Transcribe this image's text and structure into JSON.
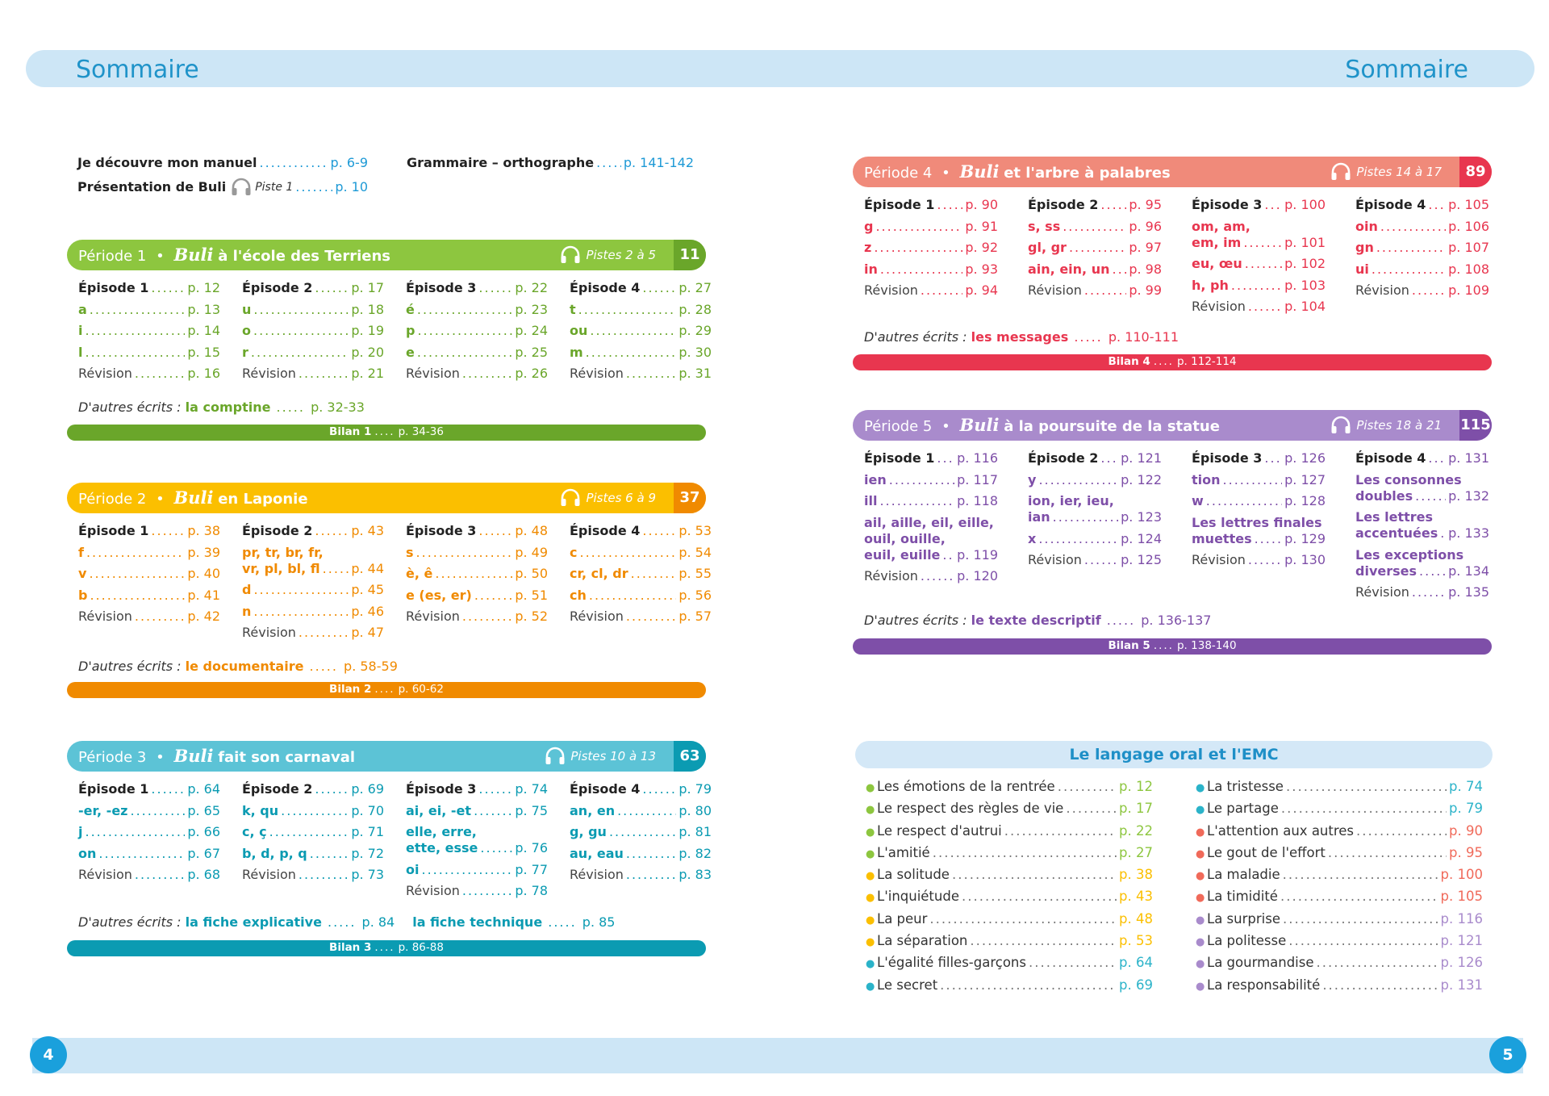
{
  "header": {
    "title_left": "Sommaire",
    "title_right": "Sommaire"
  },
  "footer": {
    "page_left": "4",
    "page_right": "5"
  },
  "intro": {
    "decouvre": {
      "label": "Je découvre mon manuel",
      "page": "p. 6-9"
    },
    "presentation": {
      "label": "Présentation de Buli",
      "track": "Piste 1",
      "page": "p. 10"
    },
    "grammaire": {
      "label": "Grammaire – orthographe",
      "page": "p. 141-142"
    }
  },
  "periods": [
    {
      "period": "Période 1",
      "bullet": "•",
      "buli": "Buli",
      "title": "à l'école des Terriens",
      "tracks": "Pistes 2 à 5",
      "page_start": "11",
      "color": "#8dc63f",
      "dark": "#6aa62a",
      "columns": [
        [
          {
            "t": "ep",
            "label": "Épisode 1",
            "page": "p. 12"
          },
          {
            "t": "let",
            "label": "a",
            "page": "p. 13"
          },
          {
            "t": "let",
            "label": "i",
            "page": "p. 14"
          },
          {
            "t": "let",
            "label": "l",
            "page": "p. 15"
          },
          {
            "t": "rev",
            "label": "Révision",
            "page": "p. 16"
          }
        ],
        [
          {
            "t": "ep",
            "label": "Épisode 2",
            "page": "p. 17"
          },
          {
            "t": "let",
            "label": "u",
            "page": "p. 18"
          },
          {
            "t": "let",
            "label": "o",
            "page": "p. 19"
          },
          {
            "t": "let",
            "label": "r",
            "page": "p. 20"
          },
          {
            "t": "rev",
            "label": "Révision",
            "page": "p. 21"
          }
        ],
        [
          {
            "t": "ep",
            "label": "Épisode 3",
            "page": "p. 22"
          },
          {
            "t": "let",
            "label": "é",
            "page": "p. 23"
          },
          {
            "t": "let",
            "label": "p",
            "page": "p. 24"
          },
          {
            "t": "let",
            "label": "e",
            "page": "p. 25"
          },
          {
            "t": "rev",
            "label": "Révision",
            "page": "p. 26"
          }
        ],
        [
          {
            "t": "ep",
            "label": "Épisode 4",
            "page": "p. 27"
          },
          {
            "t": "let",
            "label": "t",
            "page": "p. 28"
          },
          {
            "t": "let",
            "label": "ou",
            "page": "p. 29"
          },
          {
            "t": "let",
            "label": "m",
            "page": "p. 30"
          },
          {
            "t": "rev",
            "label": "Révision",
            "page": "p. 31"
          }
        ]
      ],
      "autres": {
        "prefix": "D'autres écrits :",
        "items": [
          {
            "label": "la comptine",
            "page": "p. 32-33"
          }
        ]
      },
      "bilan": {
        "label": "Bilan 1",
        "page": "p. 34-36"
      }
    },
    {
      "period": "Période 2",
      "bullet": "•",
      "buli": "Buli",
      "title": "en Laponie",
      "tracks": "Pistes 6 à 9",
      "page_start": "37",
      "color": "#fbbf00",
      "dark": "#f08a00",
      "columns": [
        [
          {
            "t": "ep",
            "label": "Épisode 1",
            "page": "p. 38"
          },
          {
            "t": "let",
            "label": "f",
            "page": "p. 39"
          },
          {
            "t": "let",
            "label": "v",
            "page": "p. 40"
          },
          {
            "t": "let",
            "label": "b",
            "page": "p. 41"
          },
          {
            "t": "rev",
            "label": "Révision",
            "page": "p. 42"
          }
        ],
        [
          {
            "t": "ep",
            "label": "Épisode 2",
            "page": "p. 43"
          },
          {
            "t": "let",
            "label": "pr, tr, br, fr,",
            "page": ""
          },
          {
            "t": "let",
            "label": "vr, pl, bl, fl",
            "page": "p. 44"
          },
          {
            "t": "let",
            "label": "d",
            "page": "p. 45"
          },
          {
            "t": "let",
            "label": "n",
            "page": "p. 46"
          },
          {
            "t": "rev",
            "label": "Révision",
            "page": "p. 47"
          }
        ],
        [
          {
            "t": "ep",
            "label": "Épisode 3",
            "page": "p. 48"
          },
          {
            "t": "let",
            "label": "s",
            "page": "p. 49"
          },
          {
            "t": "let",
            "label": "è, ê",
            "page": "p. 50"
          },
          {
            "t": "let",
            "label": "e (es, er)",
            "page": "p. 51"
          },
          {
            "t": "rev",
            "label": "Révision",
            "page": "p. 52"
          }
        ],
        [
          {
            "t": "ep",
            "label": "Épisode 4",
            "page": "p. 53"
          },
          {
            "t": "let",
            "label": "c",
            "page": "p. 54"
          },
          {
            "t": "let",
            "label": "cr, cl, dr",
            "page": "p. 55"
          },
          {
            "t": "let",
            "label": "ch",
            "page": "p. 56"
          },
          {
            "t": "rev",
            "label": "Révision",
            "page": "p. 57"
          }
        ]
      ],
      "autres": {
        "prefix": "D'autres écrits :",
        "items": [
          {
            "label": "le documentaire",
            "page": "p. 58-59"
          }
        ]
      },
      "bilan": {
        "label": "Bilan 2",
        "page": "p. 60-62"
      }
    },
    {
      "period": "Période 3",
      "bullet": "•",
      "buli": "Buli",
      "title": "fait son carnaval",
      "tracks": "Pistes 10 à 13",
      "page_start": "63",
      "color": "#5cc3d6",
      "dark": "#0b9bb2",
      "columns": [
        [
          {
            "t": "ep",
            "label": "Épisode 1",
            "page": "p. 64"
          },
          {
            "t": "let",
            "label": "-er, -ez",
            "page": "p. 65"
          },
          {
            "t": "let",
            "label": "j",
            "page": "p. 66"
          },
          {
            "t": "let",
            "label": "on",
            "page": "p. 67"
          },
          {
            "t": "rev",
            "label": "Révision",
            "page": "p. 68"
          }
        ],
        [
          {
            "t": "ep",
            "label": "Épisode 2",
            "page": "p. 69"
          },
          {
            "t": "let",
            "label": "k, qu",
            "page": "p. 70"
          },
          {
            "t": "let",
            "label": "c, ç",
            "page": "p. 71"
          },
          {
            "t": "let",
            "label": "b, d, p, q",
            "page": "p. 72"
          },
          {
            "t": "rev",
            "label": "Révision",
            "page": "p. 73"
          }
        ],
        [
          {
            "t": "ep",
            "label": "Épisode 3",
            "page": "p. 74"
          },
          {
            "t": "let",
            "label": "ai, ei, -et",
            "page": "p. 75"
          },
          {
            "t": "let",
            "label": "elle, erre,",
            "page": ""
          },
          {
            "t": "let",
            "label": "ette, esse",
            "page": "p. 76"
          },
          {
            "t": "let",
            "label": "oi",
            "page": "p. 77"
          },
          {
            "t": "rev",
            "label": "Révision",
            "page": "p. 78"
          }
        ],
        [
          {
            "t": "ep",
            "label": "Épisode 4",
            "page": "p. 79"
          },
          {
            "t": "let",
            "label": "an, en",
            "page": "p. 80"
          },
          {
            "t": "let",
            "label": "g, gu",
            "page": "p. 81"
          },
          {
            "t": "let",
            "label": "au, eau",
            "page": "p. 82"
          },
          {
            "t": "rev",
            "label": "Révision",
            "page": "p. 83"
          }
        ]
      ],
      "autres": {
        "prefix": "D'autres écrits :",
        "items": [
          {
            "label": "la fiche explicative",
            "page": "p. 84"
          },
          {
            "label": "la fiche technique",
            "page": "p. 85"
          }
        ]
      },
      "bilan": {
        "label": "Bilan 3",
        "page": "p. 86-88"
      }
    },
    {
      "period": "Période 4",
      "bullet": "•",
      "buli": "Buli",
      "title": "et l'arbre à palabres",
      "tracks": "Pistes 14 à 17",
      "page_start": "89",
      "color": "#f08a7a",
      "dark": "#e8364f",
      "columns": [
        [
          {
            "t": "ep",
            "label": "Épisode 1",
            "page": "p. 90"
          },
          {
            "t": "let",
            "label": "g",
            "page": "p. 91"
          },
          {
            "t": "let",
            "label": "z",
            "page": "p. 92"
          },
          {
            "t": "let",
            "label": "in",
            "page": "p. 93"
          },
          {
            "t": "rev",
            "label": "Révision",
            "page": "p. 94"
          }
        ],
        [
          {
            "t": "ep",
            "label": "Épisode 2",
            "page": "p. 95"
          },
          {
            "t": "let",
            "label": "s, ss",
            "page": "p. 96"
          },
          {
            "t": "let",
            "label": "gl, gr",
            "page": "p. 97"
          },
          {
            "t": "let",
            "label": "ain, ein, un",
            "page": "p. 98"
          },
          {
            "t": "rev",
            "label": "Révision",
            "page": "p. 99"
          }
        ],
        [
          {
            "t": "ep",
            "label": "Épisode 3",
            "page": "p. 100"
          },
          {
            "t": "let",
            "label": "om, am,",
            "page": ""
          },
          {
            "t": "let",
            "label": "em, im",
            "page": "p. 101"
          },
          {
            "t": "let",
            "label": "eu, œu",
            "page": "p. 102"
          },
          {
            "t": "let",
            "label": "h, ph",
            "page": "p. 103"
          },
          {
            "t": "rev",
            "label": "Révision",
            "page": "p. 104"
          }
        ],
        [
          {
            "t": "ep",
            "label": "Épisode 4",
            "page": "p. 105"
          },
          {
            "t": "let",
            "label": "oin",
            "page": "p. 106"
          },
          {
            "t": "let",
            "label": "gn",
            "page": "p. 107"
          },
          {
            "t": "let",
            "label": "ui",
            "page": "p. 108"
          },
          {
            "t": "rev",
            "label": "Révision",
            "page": "p. 109"
          }
        ]
      ],
      "autres": {
        "prefix": "D'autres écrits :",
        "items": [
          {
            "label": "les messages",
            "page": "p. 110-111"
          }
        ]
      },
      "bilan": {
        "label": "Bilan 4",
        "page": "p. 112-114"
      }
    },
    {
      "period": "Période 5",
      "bullet": "•",
      "buli": "Buli",
      "title": "à la poursuite de la statue",
      "tracks": "Pistes 18 à 21",
      "page_start": "115",
      "color": "#a98bcc",
      "dark": "#7e4fa8",
      "columns": [
        [
          {
            "t": "ep",
            "label": "Épisode 1",
            "page": "p. 116"
          },
          {
            "t": "let",
            "label": "ien",
            "page": "p. 117"
          },
          {
            "t": "let",
            "label": "ill",
            "page": "p. 118"
          },
          {
            "t": "let",
            "label": "ail, aille, eil, eille,",
            "page": ""
          },
          {
            "t": "let",
            "label": "ouil, ouille,",
            "page": ""
          },
          {
            "t": "let",
            "label": "euil, euille",
            "page": "p. 119"
          },
          {
            "t": "rev",
            "label": "Révision",
            "page": "p. 120"
          }
        ],
        [
          {
            "t": "ep",
            "label": "Épisode 2",
            "page": "p. 121"
          },
          {
            "t": "let",
            "label": "y",
            "page": "p. 122"
          },
          {
            "t": "let",
            "label": "ion, ier, ieu,",
            "page": ""
          },
          {
            "t": "let",
            "label": "ian",
            "page": "p. 123"
          },
          {
            "t": "let",
            "label": "x",
            "page": "p. 124"
          },
          {
            "t": "rev",
            "label": "Révision",
            "page": "p. 125"
          }
        ],
        [
          {
            "t": "ep",
            "label": "Épisode 3",
            "page": "p. 126"
          },
          {
            "t": "let",
            "label": "tion",
            "page": "p. 127"
          },
          {
            "t": "let",
            "label": "w",
            "page": "p. 128"
          },
          {
            "t": "let",
            "label": "Les lettres finales",
            "page": ""
          },
          {
            "t": "let",
            "label": "muettes",
            "page": "p. 129"
          },
          {
            "t": "rev",
            "label": "Révision",
            "page": "p. 130"
          }
        ],
        [
          {
            "t": "ep",
            "label": "Épisode 4",
            "page": "p. 131"
          },
          {
            "t": "let",
            "label": "Les consonnes",
            "page": ""
          },
          {
            "t": "let",
            "label": "doubles",
            "page": "p. 132"
          },
          {
            "t": "let",
            "label": "Les lettres",
            "page": ""
          },
          {
            "t": "let",
            "label": "accentuées",
            "page": "p. 133"
          },
          {
            "t": "let",
            "label": "Les exceptions",
            "page": ""
          },
          {
            "t": "let",
            "label": "diverses",
            "page": "p. 134"
          },
          {
            "t": "rev",
            "label": "Révision",
            "page": "p. 135"
          }
        ]
      ],
      "autres": {
        "prefix": "D'autres écrits :",
        "items": [
          {
            "label": "le texte descriptif",
            "page": "p. 136-137"
          }
        ]
      },
      "bilan": {
        "label": "Bilan 5",
        "page": "p. 138-140"
      }
    }
  ],
  "emc": {
    "title": "Le langage oral et l'EMC",
    "left": [
      {
        "label": "Les émotions de la rentrée",
        "page": "p. 12",
        "color": "#8dc63f"
      },
      {
        "label": "Le respect des règles de vie",
        "page": "p. 17",
        "color": "#8dc63f"
      },
      {
        "label": "Le respect d'autrui",
        "page": "p. 22",
        "color": "#8dc63f"
      },
      {
        "label": "L'amitié",
        "page": "p. 27",
        "color": "#8dc63f"
      },
      {
        "label": "La solitude",
        "page": "p. 38",
        "color": "#fbbf00"
      },
      {
        "label": "L'inquiétude",
        "page": "p. 43",
        "color": "#fbbf00"
      },
      {
        "label": "La peur",
        "page": "p. 48",
        "color": "#fbbf00"
      },
      {
        "label": "La séparation",
        "page": "p. 53",
        "color": "#fbbf00"
      },
      {
        "label": "L'égalité filles-garçons",
        "page": "p. 64",
        "color": "#2bb3c9"
      },
      {
        "label": "Le secret",
        "page": "p. 69",
        "color": "#2bb3c9"
      }
    ],
    "right": [
      {
        "label": "La tristesse",
        "page": "p. 74",
        "color": "#2bb3c9"
      },
      {
        "label": "Le partage",
        "page": "p. 79",
        "color": "#2bb3c9"
      },
      {
        "label": "L'attention aux autres",
        "page": "p. 90",
        "color": "#f06a5a"
      },
      {
        "label": "Le gout de l'effort",
        "page": "p. 95",
        "color": "#f06a5a"
      },
      {
        "label": "La maladie",
        "page": "p. 100",
        "color": "#f06a5a"
      },
      {
        "label": "La timidité",
        "page": "p. 105",
        "color": "#f06a5a"
      },
      {
        "label": "La surprise",
        "page": "p. 116",
        "color": "#a98bcc"
      },
      {
        "label": "La politesse",
        "page": "p. 121",
        "color": "#a98bcc"
      },
      {
        "label": "La gourmandise",
        "page": "p. 126",
        "color": "#a98bcc"
      },
      {
        "label": "La responsabilité",
        "page": "p. 131",
        "color": "#a98bcc"
      }
    ]
  }
}
